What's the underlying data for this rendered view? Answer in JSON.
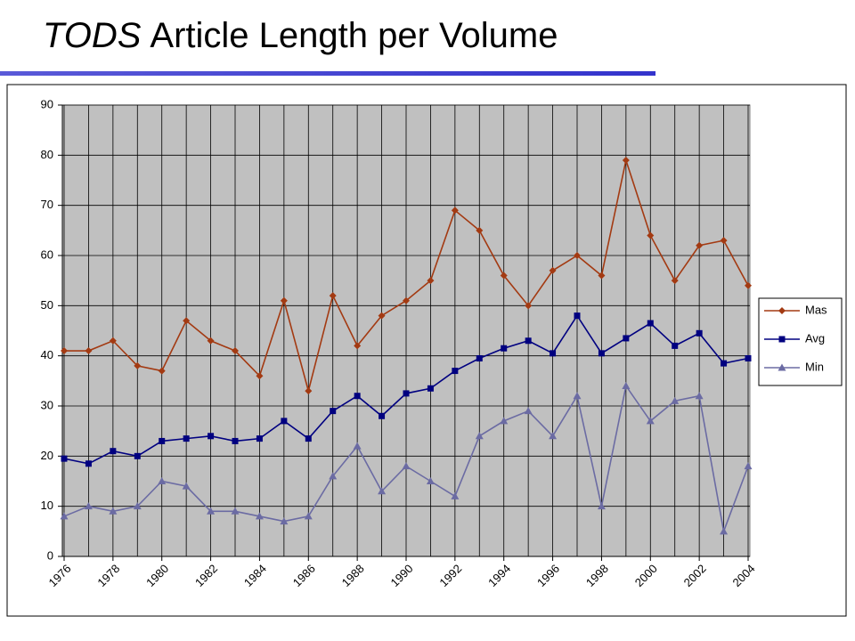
{
  "chart_data": {
    "type": "line",
    "title": [
      "TODS",
      "Article Length per Volume"
    ],
    "x": [
      1976,
      1977,
      1978,
      1979,
      1980,
      1981,
      1982,
      1983,
      1984,
      1985,
      1986,
      1987,
      1988,
      1989,
      1990,
      1991,
      1992,
      1993,
      1994,
      1995,
      1996,
      1997,
      1998,
      1999,
      2000,
      2001,
      2002,
      2003,
      2004
    ],
    "xlim": [
      1976,
      2004
    ],
    "xticks": [
      1976,
      1978,
      1980,
      1982,
      1984,
      1986,
      1988,
      1990,
      1992,
      1994,
      1996,
      1998,
      2000,
      2002,
      2004
    ],
    "ylim": [
      0,
      90
    ],
    "yticks": [
      0,
      10,
      20,
      30,
      40,
      50,
      60,
      70,
      80,
      90
    ],
    "grid": true,
    "legend": "right",
    "series": [
      {
        "name": "Mas",
        "color": "#a33a12",
        "marker": "diamond",
        "values": [
          41,
          41,
          43,
          38,
          37,
          47,
          43,
          41,
          36,
          51,
          33,
          52,
          42,
          48,
          51,
          55,
          69,
          65,
          56,
          50,
          57,
          60,
          56,
          79,
          64,
          55,
          62,
          63,
          54
        ]
      },
      {
        "name": "Avg",
        "color": "#000080",
        "marker": "square",
        "values": [
          19.5,
          18.5,
          21,
          20,
          23,
          23.5,
          24,
          23,
          23.5,
          27,
          23.5,
          29,
          32,
          28,
          32.5,
          33.5,
          37,
          39.5,
          41.5,
          43,
          40.5,
          48,
          40.5,
          43.5,
          46.5,
          42,
          44.5,
          38.5,
          39.5
        ]
      },
      {
        "name": "Min",
        "color": "#6b6ba3",
        "marker": "triangle",
        "values": [
          8,
          10,
          9,
          10,
          15,
          14,
          9,
          9,
          8,
          7,
          8,
          16,
          22,
          13,
          18,
          15,
          12,
          24,
          27,
          29,
          24,
          32,
          10,
          34,
          27,
          31,
          32,
          5,
          18
        ]
      }
    ]
  }
}
